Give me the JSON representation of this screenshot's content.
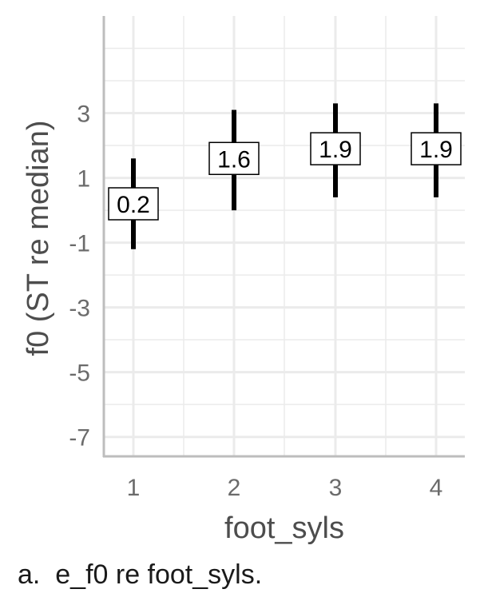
{
  "caption": "a.  e_f0 re foot_syls.",
  "chart_data": {
    "type": "errorbar",
    "title": "",
    "xlabel": "foot_syls",
    "ylabel": "f0 (ST re median)",
    "categories": [
      "1",
      "2",
      "3",
      "4"
    ],
    "values": [
      0.2,
      1.6,
      1.9,
      1.9
    ],
    "data_labels": [
      "0.2",
      "1.6",
      "1.9",
      "1.9"
    ],
    "error_low": [
      -1.2,
      0.0,
      0.4,
      0.4
    ],
    "error_high": [
      1.6,
      3.1,
      3.3,
      3.3
    ],
    "yticks": [
      "3",
      "1",
      "-1",
      "-3",
      "-5",
      "-7"
    ],
    "ylim": [
      -7.6,
      6.0
    ],
    "grid": true,
    "colors": {
      "bar": "#000000",
      "grid": "#ebebeb",
      "axis": "#bdbdbd"
    }
  }
}
